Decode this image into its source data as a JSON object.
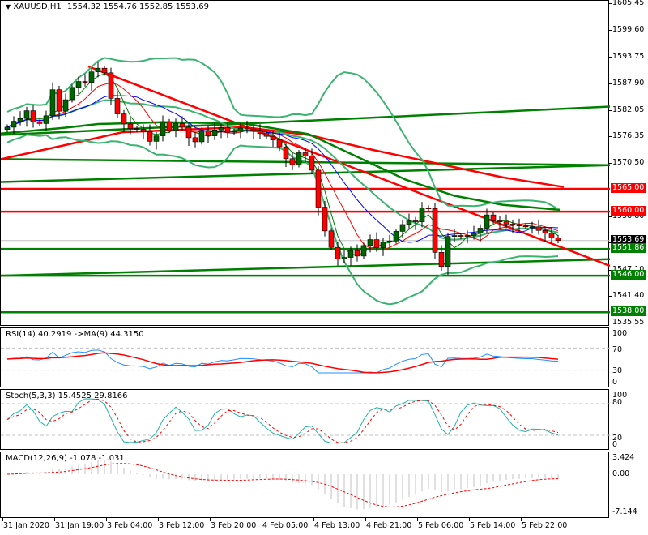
{
  "header": {
    "symbol": "XAUUSD,H1",
    "ohlc": "1554.32 1554.76 1552.85 1553.69",
    "menu_icon": "triangle-down-icon"
  },
  "price_axis": {
    "ticks": [
      "1605.45",
      "1599.60",
      "1593.75",
      "1587.90",
      "1582.05",
      "1576.35",
      "1570.50",
      "1564.65",
      "1558.80",
      "1553.10",
      "1547.10",
      "1541.40",
      "1535.55"
    ],
    "tags": [
      {
        "value": "1565.00",
        "color": "#ff0000"
      },
      {
        "value": "1560.00",
        "color": "#ff0000"
      },
      {
        "value": "1553.69",
        "color": "#000000"
      },
      {
        "value": "1551.86",
        "color": "#008000"
      },
      {
        "value": "1546.00",
        "color": "#008000"
      },
      {
        "value": "1538.00",
        "color": "#008000"
      }
    ]
  },
  "rsi": {
    "title": "RSI(14) 40.2919  ->MA(9) 44.3150",
    "ticks": [
      "100",
      "70",
      "30",
      "0"
    ]
  },
  "stoch": {
    "title": "Stoch(5,3,3) 15.4525 29.8166",
    "ticks": [
      "100",
      "80",
      "20",
      "0"
    ]
  },
  "macd": {
    "title": "MACD(12,26,9) -1.078 -1.031",
    "ticks": [
      "3.424",
      "0.00",
      "-7.144"
    ]
  },
  "time_axis": [
    "31 Jan 2020",
    "31 Jan 19:00",
    "3 Feb 04:00",
    "3 Feb 12:00",
    "3 Feb 20:00",
    "4 Feb 05:00",
    "4 Feb 13:00",
    "4 Feb 21:00",
    "5 Feb 06:00",
    "5 Feb 14:00",
    "5 Feb 22:00"
  ],
  "chart_data": [
    {
      "type": "candlestick",
      "title": "XAUUSD,H1 1554.32 1554.76 1552.85 1553.69",
      "ylim": [
        1535.55,
        1605.45
      ],
      "x": [
        "31 Jan 2020",
        "31 Jan 19:00",
        "3 Feb 04:00",
        "3 Feb 12:00",
        "3 Feb 20:00",
        "4 Feb 05:00",
        "4 Feb 13:00",
        "4 Feb 21:00",
        "5 Feb 06:00",
        "5 Feb 14:00",
        "5 Feb 22:00"
      ],
      "close": [
        1578.5,
        1579.8,
        1580.4,
        1582.1,
        1579.6,
        1579.3,
        1581.0,
        1586.7,
        1582.0,
        1584.5,
        1587.2,
        1588.5,
        1588.3,
        1590.6,
        1591.4,
        1590.4,
        1584.8,
        1581.4,
        1579.2,
        1578.2,
        1578.0,
        1577.5,
        1575.4,
        1576.6,
        1579.7,
        1577.8,
        1579.3,
        1578.5,
        1576.2,
        1575.3,
        1577.8,
        1576.6,
        1577.9,
        1578.4,
        1577.4,
        1577.6,
        1578.3,
        1578.1,
        1577.8,
        1577.1,
        1576.5,
        1575.7,
        1574.2,
        1571.6,
        1570.3,
        1572.9,
        1572.2,
        1569.1,
        1561.0,
        1555.8,
        1552.2,
        1549.7,
        1550.0,
        1551.5,
        1550.3,
        1552.6,
        1553.9,
        1552.1,
        1553.4,
        1553.6,
        1555.7,
        1557.2,
        1558.0,
        1557.8,
        1560.8,
        1560.7,
        1551.1,
        1548.0,
        1554.6,
        1554.8,
        1554.6,
        1554.8,
        1555.3,
        1556.4,
        1559.3,
        1558.0,
        1557.8,
        1557.3,
        1557.1,
        1556.9,
        1556.7,
        1556.7,
        1555.9,
        1555.3,
        1554.3,
        1553.7
      ],
      "horizontal_levels": [
        {
          "price": 1565.0,
          "color": "red"
        },
        {
          "price": 1560.0,
          "color": "red"
        },
        {
          "price": 1551.86,
          "color": "green"
        },
        {
          "price": 1546.0,
          "color": "green"
        },
        {
          "price": 1538.0,
          "color": "green"
        }
      ],
      "indicators": [
        "Bollinger Bands (green)",
        "MA fast (green thin)",
        "MA (red thin)",
        "MA (blue thin)",
        "MA slow (red thick)",
        "MA slow (green thick)",
        "Trendlines red/green"
      ]
    },
    {
      "type": "line",
      "title": "RSI(14) 40.2919 ->MA(9) 44.3150",
      "ylim": [
        0,
        100
      ],
      "levels": [
        70,
        30
      ],
      "series": [
        {
          "name": "RSI(14)",
          "last": 40.2919
        },
        {
          "name": "MA(9)",
          "last": 44.315
        }
      ]
    },
    {
      "type": "line",
      "title": "Stoch(5,3,3) 15.4525 29.8166",
      "ylim": [
        0,
        100
      ],
      "levels": [
        80,
        20
      ],
      "series": [
        {
          "name": "%K",
          "last": 15.4525
        },
        {
          "name": "%D",
          "last": 29.8166
        }
      ]
    },
    {
      "type": "bar",
      "title": "MACD(12,26,9) -1.078 -1.031",
      "ylim": [
        -7.144,
        3.424
      ],
      "series": [
        {
          "name": "MACD",
          "last": -1.078
        },
        {
          "name": "Signal",
          "last": -1.031
        }
      ]
    }
  ]
}
